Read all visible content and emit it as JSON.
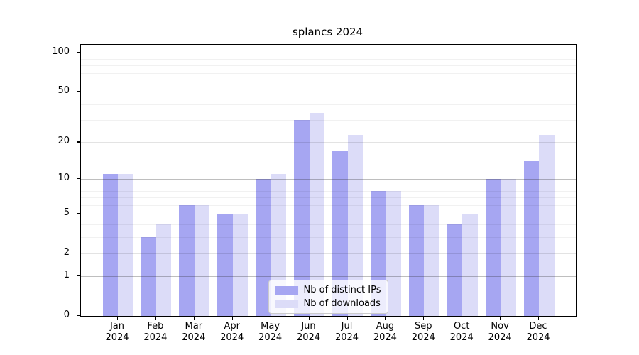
{
  "chart_data": {
    "type": "bar",
    "title": "splancs 2024",
    "categories": [
      "Jan 2024",
      "Feb 2024",
      "Mar 2024",
      "Apr 2024",
      "May 2024",
      "Jun 2024",
      "Jul 2024",
      "Aug 2024",
      "Sep 2024",
      "Oct 2024",
      "Nov 2024",
      "Dec 2024"
    ],
    "series": [
      {
        "name": "Nb of distinct IPs",
        "color": "#a6a6f2",
        "values": [
          11,
          3,
          6,
          5,
          10,
          30,
          17,
          8,
          6,
          4,
          10,
          14
        ]
      },
      {
        "name": "Nb of downloads",
        "color": "#dcdcf8",
        "values": [
          11,
          4,
          6,
          5,
          11,
          34,
          23,
          8,
          6,
          5,
          10,
          23
        ]
      }
    ],
    "xlabel": "",
    "ylabel": "",
    "y_scale": "log1p",
    "y_tick_labels": [
      "0",
      "1",
      "2",
      "5",
      "10",
      "20",
      "50",
      "100"
    ],
    "y_ticks": [
      0,
      1,
      2,
      5,
      10,
      20,
      50,
      100
    ],
    "decade_gridlines": [
      1,
      10,
      100
    ],
    "mid_gridlines": [
      2,
      5,
      20,
      50
    ],
    "minor_gridlines": [
      3,
      4,
      6,
      7,
      8,
      9,
      30,
      40,
      60,
      70,
      80,
      90
    ],
    "ylim": [
      0,
      105
    ],
    "grid": true,
    "legend_position": "bottom-center"
  },
  "colors": {
    "series1": "#a6a6f2",
    "series2": "#dcdcf8",
    "axis": "#000000",
    "legend_border": "#cccccc"
  }
}
